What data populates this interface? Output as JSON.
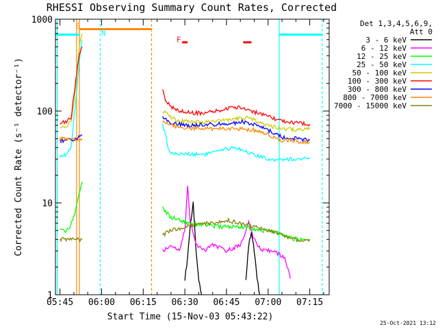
{
  "chart_data": {
    "type": "line",
    "title": "RHESSI Observing Summary Count Rates, Corrected",
    "xlabel": "Start Time (15-Nov-03 05:43:22)",
    "ylabel": "Corrected Count Rate (s⁻¹ detector⁻¹)",
    "y_scale": "log",
    "ylim": [
      1,
      1000
    ],
    "xlim": [
      "05:43:22",
      "07:22:00"
    ],
    "y_ticks": [
      {
        "value": 1,
        "label": "1"
      },
      {
        "value": 10,
        "label": "10"
      },
      {
        "value": 100,
        "label": "100"
      },
      {
        "value": 1000,
        "label": "1000"
      }
    ],
    "x_ticks": [
      {
        "value": "05:45",
        "label": "05:45"
      },
      {
        "value": "06:00",
        "label": "06:00"
      },
      {
        "value": "06:15",
        "label": "06:15"
      },
      {
        "value": "06:30",
        "label": "06:30"
      },
      {
        "value": "06:45",
        "label": "06:45"
      },
      {
        "value": "07:00",
        "label": "07:00"
      },
      {
        "value": "07:15",
        "label": "07:15"
      }
    ],
    "legend": {
      "placement": "right",
      "header": [
        "Det 1,3,4,5,6,9,",
        "Att 0"
      ],
      "entries": [
        {
          "label": "3 - 6 keV",
          "color": "#000000"
        },
        {
          "label": "6 - 12 keV",
          "color": "#ff00ff"
        },
        {
          "label": "12 - 25 keV",
          "color": "#00ff00"
        },
        {
          "label": "25 - 50 keV",
          "color": "#00ffff"
        },
        {
          "label": "50 - 100 keV",
          "color": "#cccc00"
        },
        {
          "label": "100 - 300 keV",
          "color": "#ff0000"
        },
        {
          "label": "300 - 800 keV",
          "color": "#0000ff"
        },
        {
          "label": "800 - 7000 keV",
          "color": "#ff8800"
        },
        {
          "label": "7000 - 15000 keV",
          "color": "#808000"
        }
      ]
    },
    "series": [
      {
        "name": "3 - 6 keV",
        "color": "#000000",
        "segments": [
          {
            "x": [
              "06:30",
              "06:31",
              "06:32",
              "06:33",
              "06:34",
              "06:35",
              "06:36"
            ],
            "y": [
              1.5,
              2.5,
              6,
              10,
              3,
              1.5,
              1
            ]
          },
          {
            "x": [
              "06:52",
              "06:53",
              "06:54",
              "06:55",
              "06:56",
              "06:57"
            ],
            "y": [
              1.5,
              3.5,
              5,
              3,
              1.5,
              1
            ]
          }
        ]
      },
      {
        "name": "6 - 12 keV",
        "color": "#ff00ff",
        "segments": [
          {
            "x": [
              "06:22",
              "06:25",
              "06:28",
              "06:30",
              "06:31",
              "06:32",
              "06:34",
              "06:37",
              "06:40",
              "06:45",
              "06:50",
              "06:53",
              "06:55",
              "06:58",
              "07:02",
              "07:06",
              "07:08"
            ],
            "y": [
              3,
              3.5,
              3,
              5,
              15,
              6,
              3.5,
              3,
              3.5,
              3,
              3.5,
              6,
              4,
              3,
              3,
              2.5,
              1.5
            ]
          }
        ]
      },
      {
        "name": "12 - 25 keV",
        "color": "#00ff00",
        "segments": [
          {
            "x": [
              "05:45",
              "05:48",
              "05:50",
              "05:51",
              "05:52",
              "05:53"
            ],
            "y": [
              5,
              5,
              7,
              10,
              13,
              17
            ]
          },
          {
            "x": [
              "06:22",
              "06:23",
              "06:25",
              "06:28",
              "06:32",
              "06:37",
              "06:42",
              "06:47",
              "06:52",
              "06:56",
              "07:00",
              "07:05",
              "07:10",
              "07:15"
            ],
            "y": [
              9,
              8,
              7,
              6.5,
              6,
              5.8,
              5.5,
              5.5,
              5.5,
              5,
              5,
              4.5,
              4,
              4
            ]
          }
        ]
      },
      {
        "name": "25 - 50 keV",
        "color": "#00ffff",
        "segments": [
          {
            "x": [
              "05:45",
              "05:47",
              "05:49",
              "05:50",
              "05:51",
              "05:52",
              "05:53"
            ],
            "y": [
              32,
              33,
              40,
              80,
              160,
              350,
              600
            ]
          },
          {
            "x": [
              "06:22",
              "06:23",
              "06:24",
              "06:25",
              "06:27",
              "06:32",
              "06:37",
              "06:42",
              "06:47",
              "06:51",
              "06:55",
              "07:00",
              "07:05",
              "07:10",
              "07:15"
            ],
            "y": [
              70,
              55,
              40,
              35,
              34,
              34,
              34,
              36,
              40,
              38,
              33,
              30,
              30,
              30,
              30
            ]
          }
        ]
      },
      {
        "name": "50 - 100 keV",
        "color": "#cccc00",
        "segments": [
          {
            "x": [
              "05:45",
              "05:47",
              "05:49",
              "05:50",
              "05:51",
              "05:52",
              "05:53"
            ],
            "y": [
              64,
              66,
              75,
              120,
              250,
              500,
              700
            ]
          },
          {
            "x": [
              "06:22",
              "06:24",
              "06:27",
              "06:32",
              "06:37",
              "06:42",
              "06:47",
              "06:51",
              "06:55",
              "07:00",
              "07:05",
              "07:10",
              "07:15"
            ],
            "y": [
              100,
              90,
              80,
              75,
              75,
              78,
              80,
              85,
              80,
              70,
              64,
              63,
              63
            ]
          }
        ]
      },
      {
        "name": "100 - 300 keV",
        "color": "#ff0000",
        "segments": [
          {
            "x": [
              "05:45",
              "05:47",
              "05:49",
              "05:50",
              "05:51",
              "05:52",
              "05:53"
            ],
            "y": [
              75,
              75,
              85,
              150,
              250,
              400,
              500
            ]
          },
          {
            "x": [
              "06:22",
              "06:23",
              "06:25",
              "06:28",
              "06:32",
              "06:37",
              "06:42",
              "06:47",
              "06:51",
              "06:55",
              "07:00",
              "07:05",
              "07:10",
              "07:15"
            ],
            "y": [
              165,
              130,
              110,
              100,
              96,
              95,
              100,
              110,
              108,
              98,
              86,
              78,
              74,
              72
            ]
          }
        ]
      },
      {
        "name": "300 - 800 keV",
        "color": "#0000ff",
        "segments": [
          {
            "x": [
              "05:45",
              "05:48",
              "05:51",
              "05:53"
            ],
            "y": [
              48,
              48,
              50,
              55
            ]
          },
          {
            "x": [
              "06:22",
              "06:24",
              "06:27",
              "06:32",
              "06:37",
              "06:42",
              "06:47",
              "06:51",
              "06:55",
              "07:00",
              "07:05",
              "07:10",
              "07:15"
            ],
            "y": [
              85,
              78,
              72,
              70,
              70,
              72,
              74,
              76,
              72,
              62,
              52,
              50,
              48
            ]
          }
        ]
      },
      {
        "name": "800 - 7000 keV",
        "color": "#ff8800",
        "segments": [
          {
            "x": [
              "05:45",
              "05:48",
              "05:51",
              "05:53"
            ],
            "y": [
              50,
              50,
              50,
              50
            ]
          },
          {
            "x": [
              "06:22",
              "06:24",
              "06:27",
              "06:32",
              "06:37",
              "06:42",
              "06:47",
              "06:51",
              "06:55",
              "07:00",
              "07:05",
              "07:10",
              "07:15"
            ],
            "y": [
              75,
              72,
              68,
              65,
              64,
              64,
              65,
              64,
              62,
              55,
              48,
              47,
              46
            ]
          }
        ]
      },
      {
        "name": "7000 - 15000 keV",
        "color": "#808000",
        "segments": [
          {
            "x": [
              "05:45",
              "05:48",
              "05:51",
              "05:53"
            ],
            "y": [
              4,
              4,
              4,
              4
            ]
          },
          {
            "x": [
              "06:22",
              "06:25",
              "06:30",
              "06:35",
              "06:40",
              "06:45",
              "06:50",
              "06:55",
              "07:00",
              "07:05",
              "07:10",
              "07:15"
            ],
            "y": [
              4.5,
              5,
              5.5,
              6,
              6,
              6.5,
              6,
              5.5,
              5,
              4.5,
              4,
              4
            ]
          }
        ]
      }
    ],
    "vertical_markers": [
      {
        "time": "05:44:00",
        "color": "#00ffff",
        "style": "solid"
      },
      {
        "time": "05:51:00",
        "color": "#ff8800",
        "style": "solid"
      },
      {
        "time": "05:52:00",
        "color": "#ff8800",
        "style": "solid"
      },
      {
        "time": "05:59:30",
        "color": "#00ffff",
        "style": "dashed"
      },
      {
        "time": "06:18:00",
        "color": "#ff8800",
        "style": "dashed"
      },
      {
        "time": "07:04:00",
        "color": "#00ffff",
        "style": "solid"
      },
      {
        "time": "07:19:30",
        "color": "#00ffff",
        "style": "dashed"
      }
    ],
    "top_bars": [
      {
        "start": "05:43:30",
        "end": "05:52:00",
        "value": 680,
        "color": "#00ffff"
      },
      {
        "start": "05:52:00",
        "end": "06:18:00",
        "value": 780,
        "color": "#ff8800"
      },
      {
        "start": "07:04:00",
        "end": "07:19:30",
        "value": 680,
        "color": "#00ffff"
      },
      {
        "start": "06:29:00",
        "end": "06:31:00",
        "value": 560,
        "color": "#ff0000"
      },
      {
        "start": "06:51:00",
        "end": "06:54:00",
        "value": 560,
        "color": "#ff0000"
      }
    ],
    "annotations": [
      {
        "text": "S",
        "time": "05:50:40",
        "value": 790,
        "color": "#ff8800"
      },
      {
        "text": "N",
        "time": "05:59:50",
        "value": 660,
        "color": "#00ffff"
      },
      {
        "text": "F",
        "time": "06:27:00",
        "value": 560,
        "color": "#ff0000"
      }
    ],
    "timestamp": "25-Oct-2021 13:12"
  }
}
